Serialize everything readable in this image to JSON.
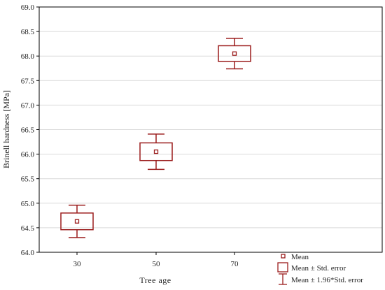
{
  "chart_data": {
    "type": "box",
    "xlabel": "Tree age",
    "ylabel": "Brinell hardness [MPa]",
    "categories": [
      "30",
      "50",
      "70"
    ],
    "ylim": [
      64.0,
      69.0
    ],
    "yticks": [
      "64.0",
      "64.5",
      "65.0",
      "65.5",
      "66.0",
      "66.5",
      "67.0",
      "67.5",
      "68.0",
      "68.5",
      "69.0"
    ],
    "grid": true,
    "series": [
      {
        "category": "30",
        "mean": 64.63,
        "se_low": 64.46,
        "se_high": 64.8,
        "ci_low": 64.3,
        "ci_high": 64.96
      },
      {
        "category": "50",
        "mean": 66.05,
        "se_low": 65.87,
        "se_high": 66.23,
        "ci_low": 65.69,
        "ci_high": 66.41
      },
      {
        "category": "70",
        "mean": 68.05,
        "se_low": 67.89,
        "se_high": 68.21,
        "ci_low": 67.74,
        "ci_high": 68.36
      }
    ],
    "legend": {
      "position": "bottom-right",
      "items": [
        "Mean",
        "Mean ± Std. error",
        "Mean ± 1.96*Std. error"
      ]
    },
    "colors": {
      "marker": "#9b1c1c",
      "grid": "#d9d9d9",
      "axis": "#000000"
    }
  }
}
